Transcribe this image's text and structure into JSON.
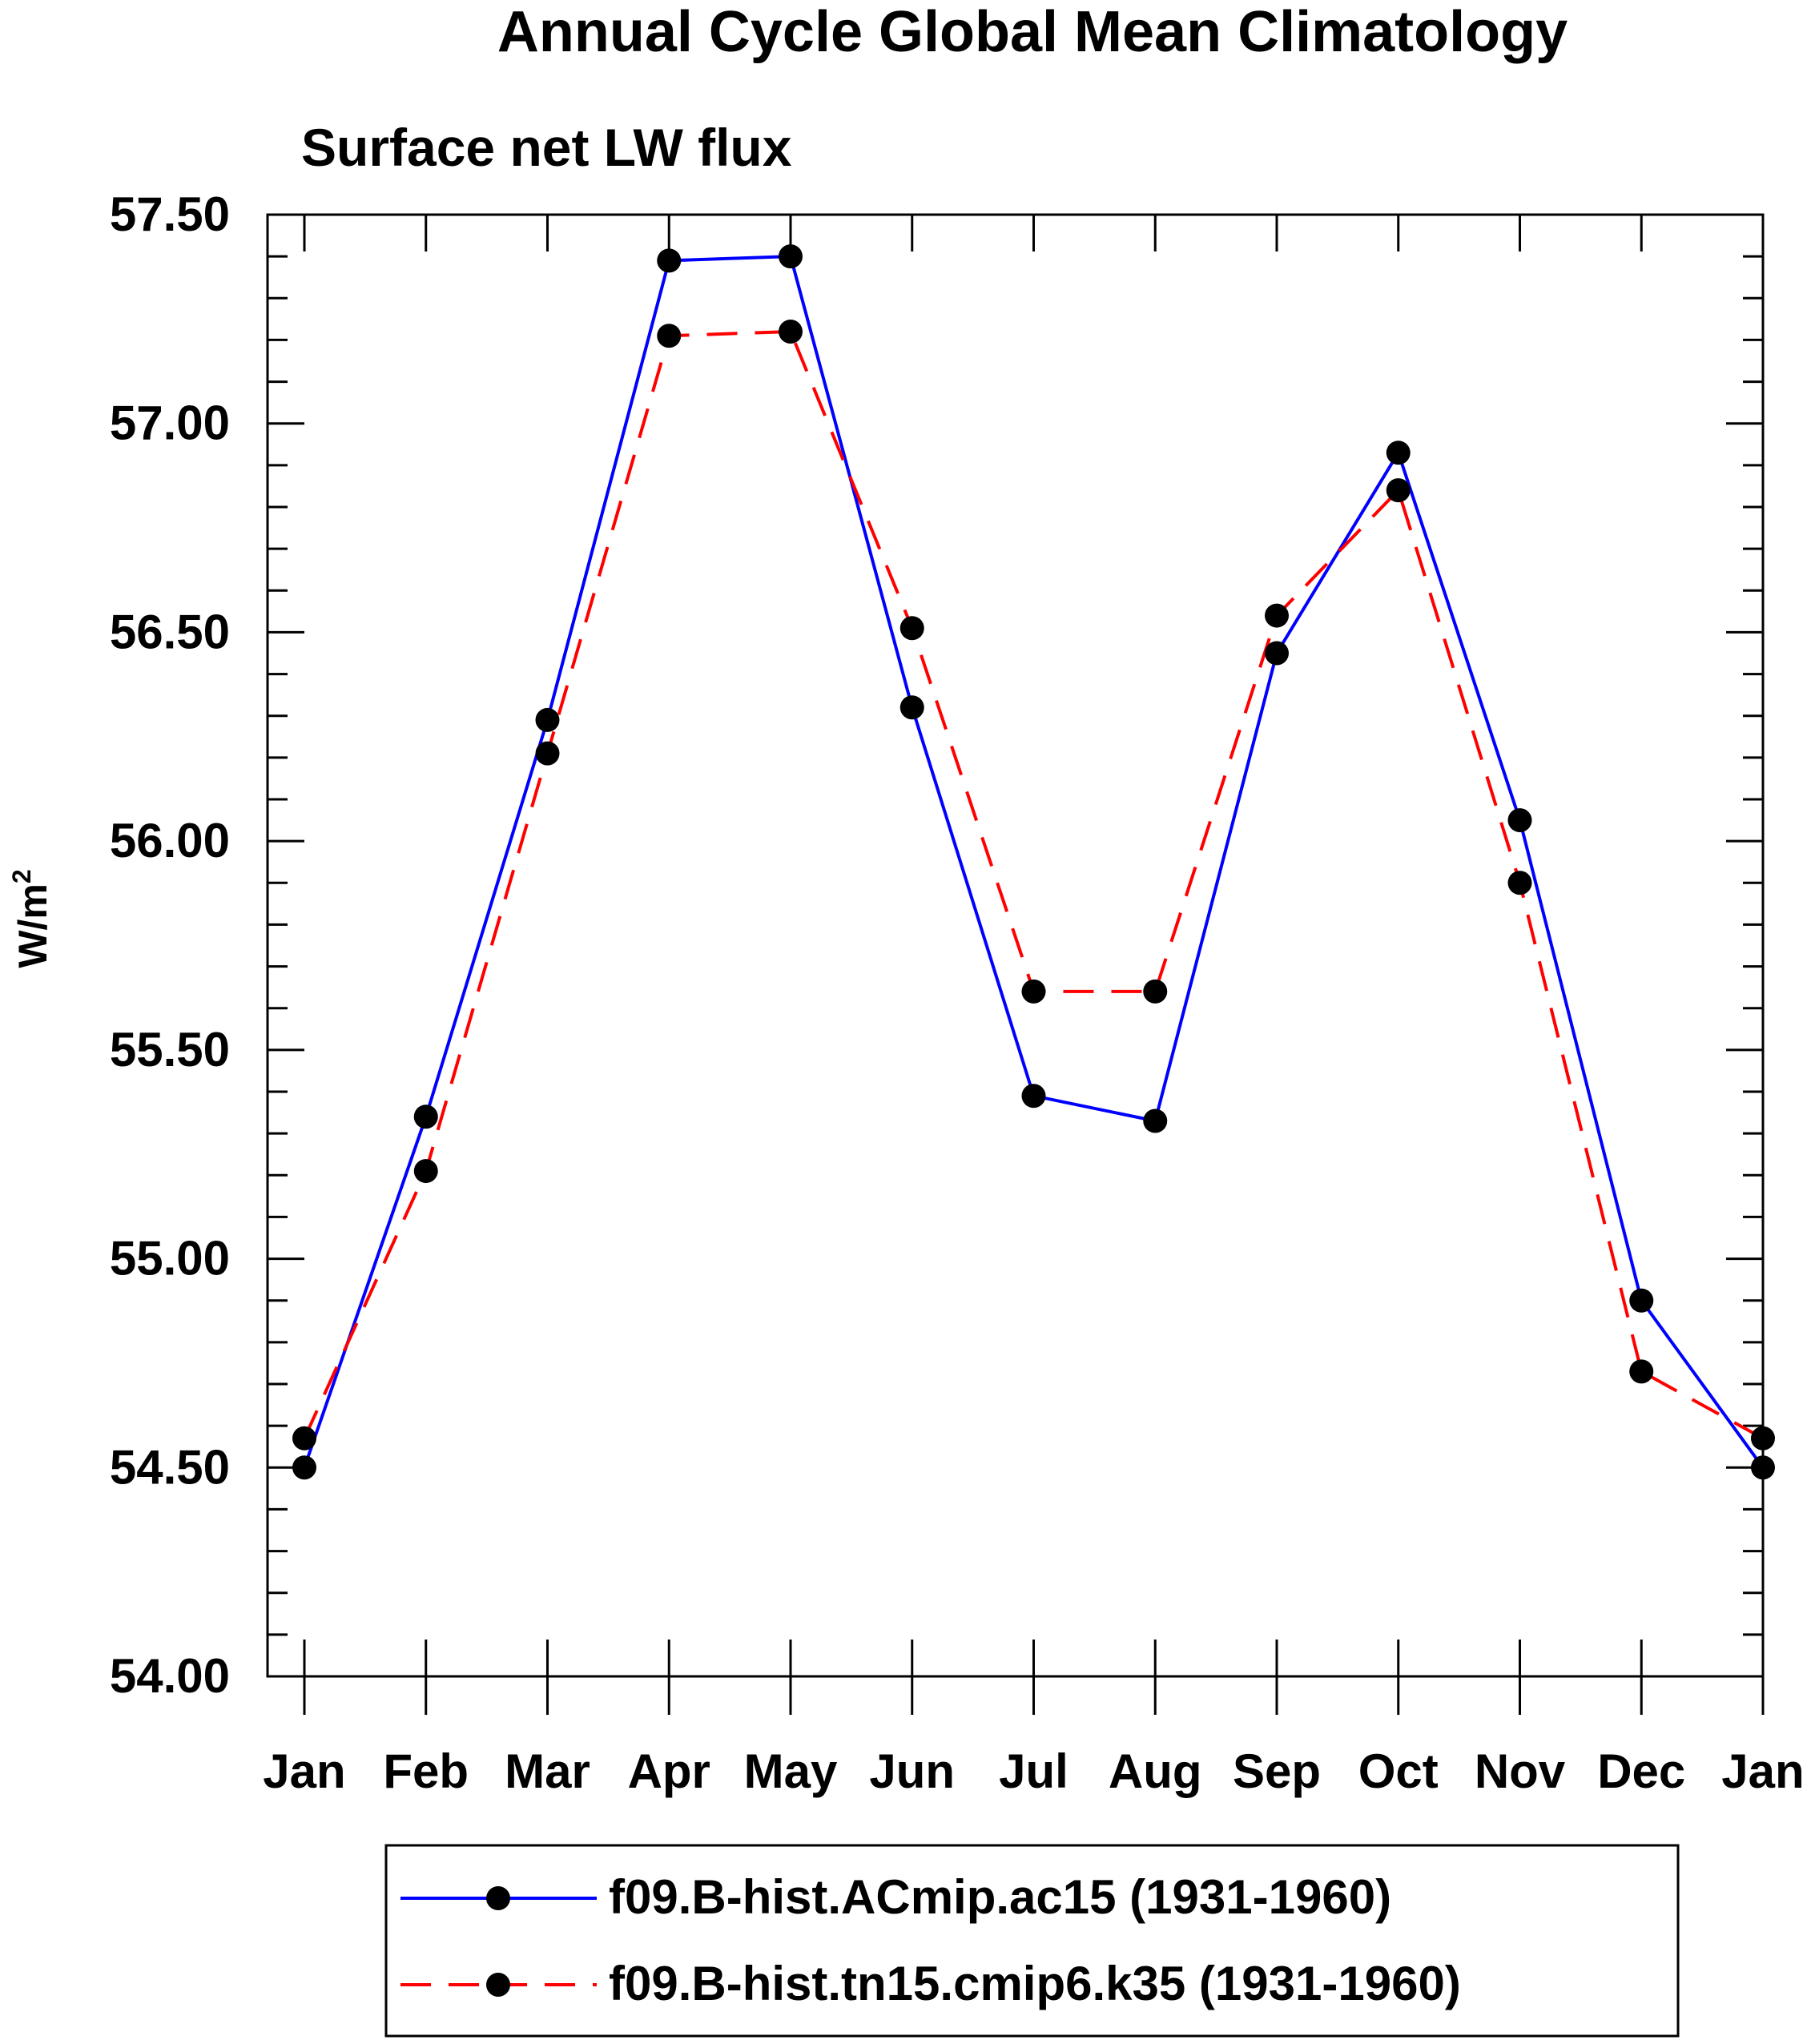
{
  "chart_data": {
    "type": "line",
    "title": "Annual Cycle Global Mean Climatology",
    "subtitle": "Surface net LW flux",
    "ylabel_base": "W/m",
    "ylabel_sup": "2",
    "categories": [
      "Jan",
      "Feb",
      "Mar",
      "Apr",
      "May",
      "Jun",
      "Jul",
      "Aug",
      "Sep",
      "Oct",
      "Nov",
      "Dec",
      "Jan"
    ],
    "ylim": [
      54.0,
      57.5
    ],
    "yticks": [
      "54.00",
      "54.50",
      "55.00",
      "55.50",
      "56.00",
      "56.50",
      "57.00",
      "57.50"
    ],
    "ytick_values": [
      54.0,
      54.5,
      55.0,
      55.5,
      56.0,
      56.5,
      57.0,
      57.5
    ],
    "grid": false,
    "legend_position": "bottom",
    "series": [
      {
        "name": "f09.B-hist.ACmip.ac15 (1931-1960)",
        "color": "#0000ff",
        "dash": "solid",
        "marker": "filled-circle",
        "values": [
          54.5,
          55.34,
          56.29,
          57.39,
          57.4,
          56.32,
          55.39,
          55.33,
          56.45,
          56.93,
          56.05,
          54.9,
          54.5
        ]
      },
      {
        "name": "f09.B-hist.tn15.cmip6.k35 (1931-1960)",
        "color": "#ff0000",
        "dash": "dashed",
        "marker": "filled-circle",
        "values": [
          54.57,
          55.21,
          56.21,
          57.21,
          57.22,
          56.51,
          55.64,
          55.64,
          56.54,
          56.84,
          55.9,
          54.73,
          54.57
        ]
      }
    ]
  }
}
